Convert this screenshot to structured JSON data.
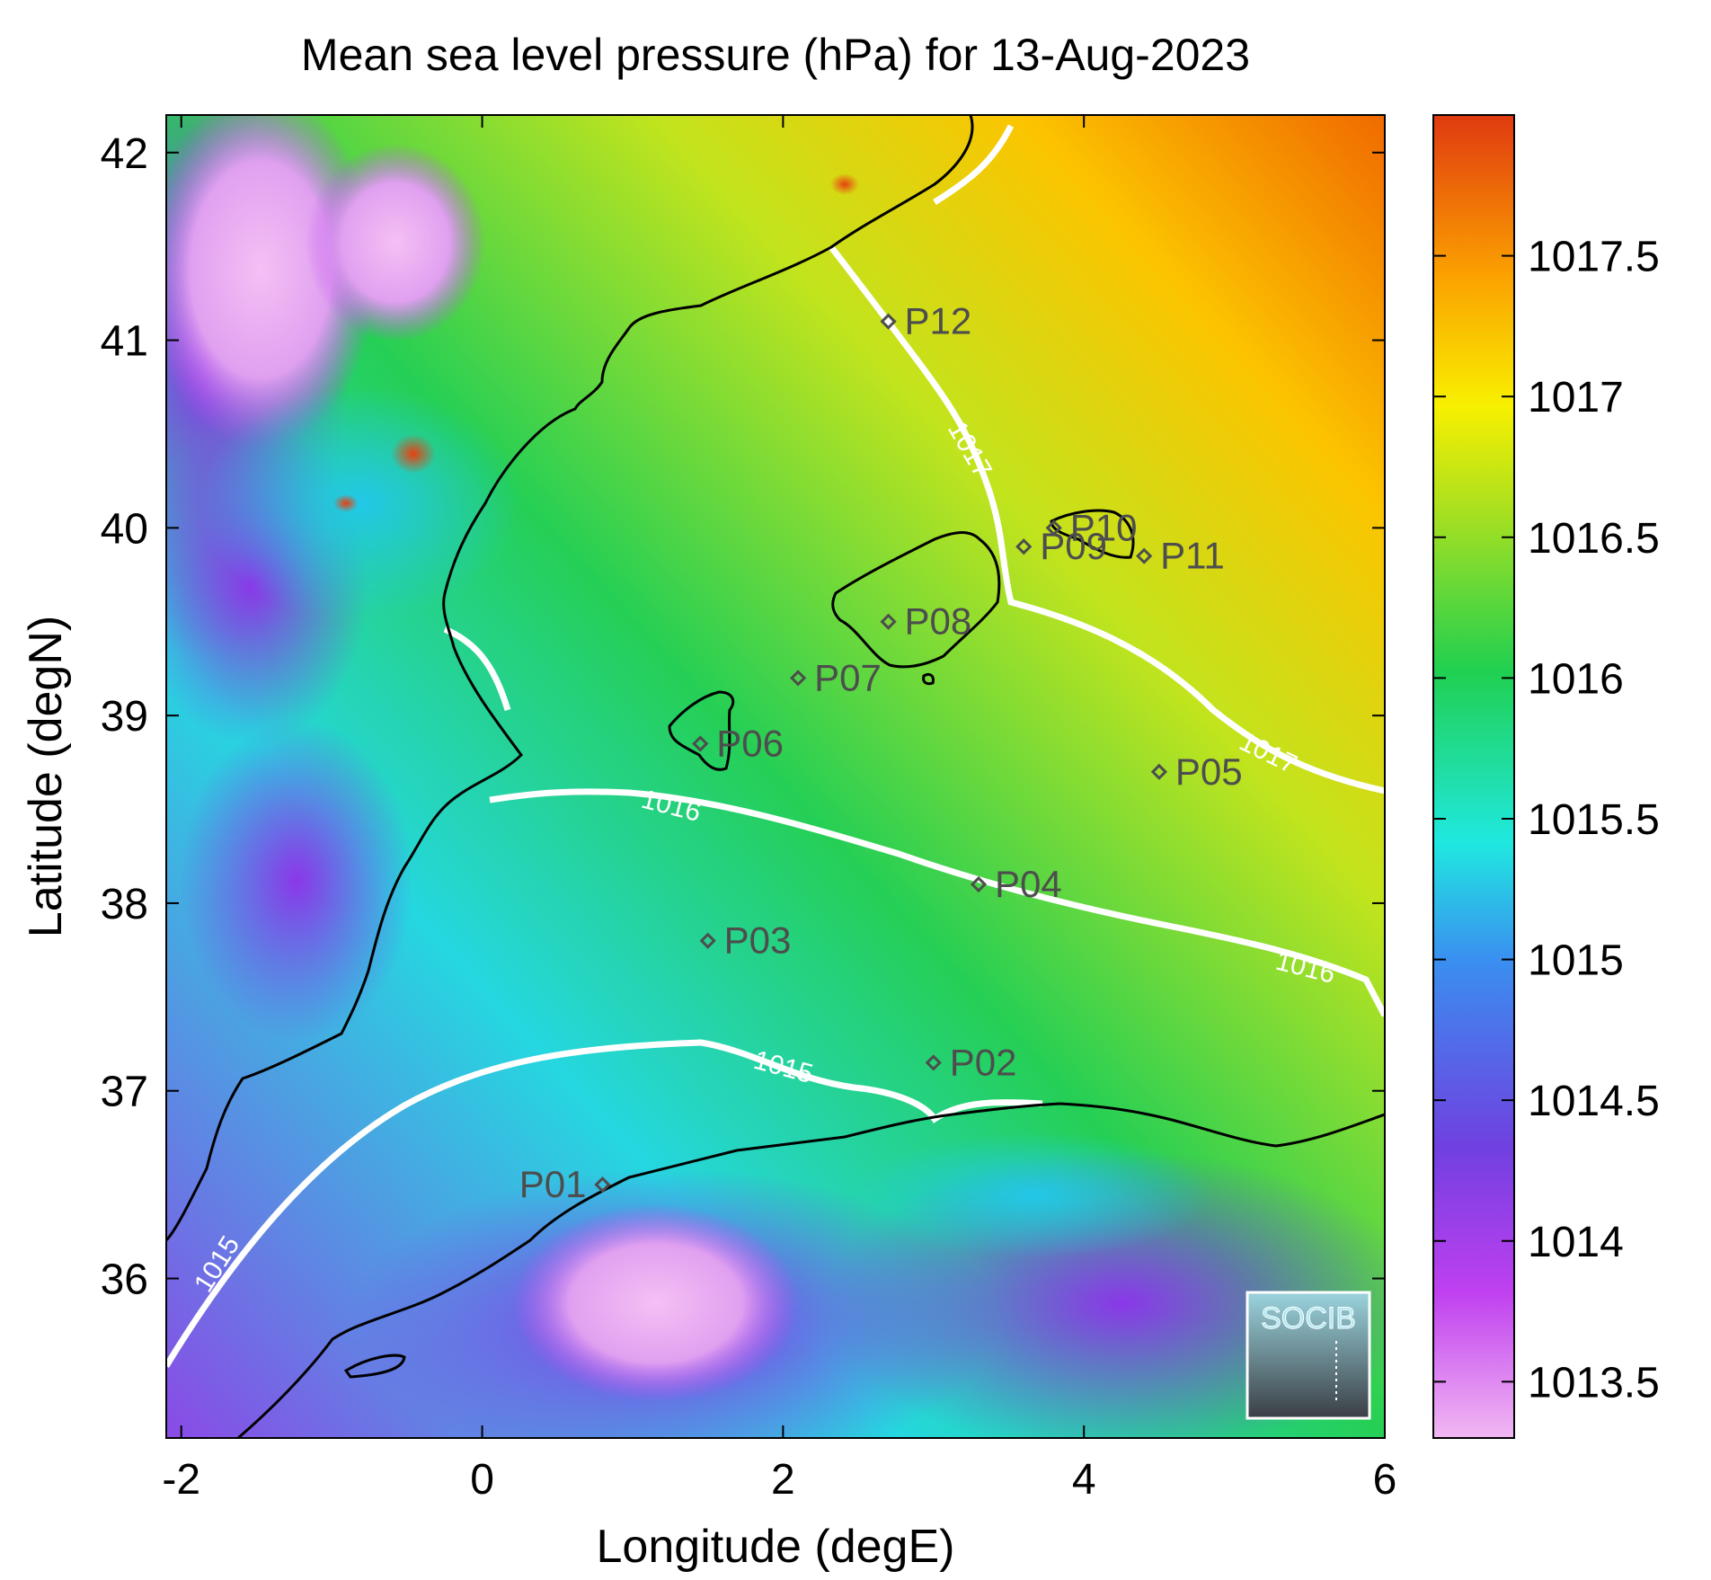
{
  "chart_data": {
    "type": "heatmap",
    "title": "Mean sea level pressure (hPa) for 13-Aug-2023",
    "xlabel": "Longitude (degE)",
    "ylabel": "Latitude (degN)",
    "xlim": [
      -2.1,
      6.0
    ],
    "ylim": [
      35.15,
      42.2
    ],
    "xticks": [
      -2,
      0,
      2,
      4,
      6
    ],
    "xtick_labels": [
      "-2",
      "0",
      "2",
      "4",
      "6"
    ],
    "yticks": [
      36,
      37,
      38,
      39,
      40,
      41,
      42
    ],
    "ytick_labels": [
      "36",
      "37",
      "38",
      "39",
      "40",
      "41",
      "42"
    ],
    "colorbar": {
      "range": [
        1013.3,
        1018.0
      ],
      "ticks": [
        1013.5,
        1014,
        1014.5,
        1015,
        1015.5,
        1016,
        1016.5,
        1017,
        1017.5
      ],
      "tick_labels": [
        "1013.5",
        "1014",
        "1014.5",
        "1015",
        "1015.5",
        "1016",
        "1016.5",
        "1017",
        "1017.5"
      ],
      "colormap": [
        "#f2b8f2",
        "#c040f0",
        "#7040e0",
        "#3a8ef0",
        "#20e8e0",
        "#20d050",
        "#a8e020",
        "#f8f000",
        "#fba000",
        "#e03a10"
      ]
    },
    "contour_labels": [
      "1015",
      "1015",
      "1016",
      "1016",
      "1017",
      "1017"
    ],
    "stations": [
      {
        "name": "P01",
        "lon": 0.8,
        "lat": 36.5
      },
      {
        "name": "P02",
        "lon": 3.0,
        "lat": 37.15
      },
      {
        "name": "P03",
        "lon": 1.5,
        "lat": 37.8
      },
      {
        "name": "P04",
        "lon": 3.3,
        "lat": 38.1
      },
      {
        "name": "P05",
        "lon": 4.5,
        "lat": 38.7
      },
      {
        "name": "P06",
        "lon": 1.45,
        "lat": 38.85
      },
      {
        "name": "P07",
        "lon": 2.1,
        "lat": 39.2
      },
      {
        "name": "P08",
        "lon": 2.7,
        "lat": 39.5
      },
      {
        "name": "P09",
        "lon": 3.6,
        "lat": 39.9
      },
      {
        "name": "P10",
        "lon": 3.8,
        "lat": 40.0
      },
      {
        "name": "P11",
        "lon": 4.4,
        "lat": 39.85
      },
      {
        "name": "P12",
        "lon": 2.7,
        "lat": 41.1
      }
    ],
    "grid": false
  },
  "logo": {
    "text": "SOCIB"
  }
}
